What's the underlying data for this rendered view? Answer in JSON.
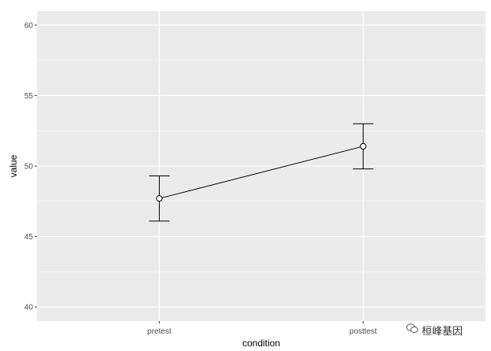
{
  "chart_data": {
    "type": "line",
    "categories": [
      "pretest",
      "posttest"
    ],
    "series": [
      {
        "values": [
          47.7,
          51.4
        ],
        "error_low": [
          46.1,
          49.8
        ],
        "error_high": [
          49.3,
          53.0
        ]
      }
    ],
    "xlabel": "condition",
    "ylabel": "value",
    "ylim": [
      39,
      61
    ],
    "yticks": [
      40,
      45,
      50,
      55,
      60
    ],
    "grid": true
  },
  "watermark": {
    "icon": "wechat-icon",
    "text": "桓峰基因"
  },
  "colors": {
    "panel": "#ebebeb",
    "grid": "#ffffff",
    "line": "#000000"
  }
}
